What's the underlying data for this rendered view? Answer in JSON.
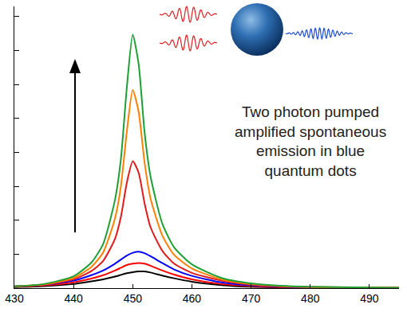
{
  "chart_data": {
    "type": "line",
    "x": [
      430,
      435,
      440,
      443,
      445,
      447,
      448,
      449,
      450,
      451,
      452,
      453,
      455,
      457,
      460,
      465,
      470,
      475,
      480,
      490,
      495
    ],
    "series": [
      {
        "color": "#000000",
        "values": [
          0.03,
          0.06,
          0.12,
          0.2,
          0.26,
          0.34,
          0.39,
          0.44,
          0.47,
          0.49,
          0.49,
          0.46,
          0.37,
          0.29,
          0.19,
          0.09,
          0.04,
          0.02,
          0.01,
          0.01,
          0.0
        ]
      },
      {
        "color": "#ff0000",
        "values": [
          0.04,
          0.08,
          0.17,
          0.28,
          0.38,
          0.52,
          0.6,
          0.68,
          0.72,
          0.74,
          0.72,
          0.66,
          0.52,
          0.4,
          0.26,
          0.12,
          0.06,
          0.03,
          0.02,
          0.01,
          0.01
        ]
      },
      {
        "color": "#0000ff",
        "values": [
          0.05,
          0.1,
          0.22,
          0.38,
          0.52,
          0.72,
          0.84,
          0.96,
          1.04,
          1.07,
          1.03,
          0.94,
          0.74,
          0.55,
          0.36,
          0.17,
          0.08,
          0.04,
          0.02,
          0.01,
          0.01
        ]
      },
      {
        "color": "#e31a1c",
        "values": [
          0.05,
          0.1,
          0.26,
          0.5,
          0.8,
          1.45,
          2.1,
          3.1,
          3.74,
          3.4,
          2.5,
          1.8,
          1.1,
          0.72,
          0.45,
          0.22,
          0.1,
          0.05,
          0.03,
          0.02,
          0.01
        ]
      },
      {
        "color": "#ff8000",
        "values": [
          0.05,
          0.11,
          0.3,
          0.62,
          1.05,
          2.05,
          3.0,
          4.6,
          5.84,
          5.2,
          3.7,
          2.65,
          1.55,
          0.98,
          0.58,
          0.26,
          0.12,
          0.06,
          0.03,
          0.02,
          0.01
        ]
      },
      {
        "color": "#1fa035",
        "values": [
          0.05,
          0.12,
          0.35,
          0.75,
          1.3,
          2.6,
          3.8,
          5.9,
          7.47,
          6.6,
          4.6,
          3.3,
          1.9,
          1.2,
          0.7,
          0.3,
          0.14,
          0.07,
          0.04,
          0.02,
          0.01
        ]
      }
    ],
    "xlim": [
      430,
      495
    ],
    "xticks": [
      430,
      440,
      450,
      460,
      470,
      480,
      490
    ],
    "ylim": [
      0,
      8.3
    ],
    "yticks": [
      0,
      1,
      2,
      3,
      4,
      5,
      6,
      7,
      8
    ],
    "tick_labels": "x",
    "annotation": [
      "Two photon pumped",
      "amplified spontaneous",
      "emission in blue",
      "quantum dots"
    ]
  }
}
